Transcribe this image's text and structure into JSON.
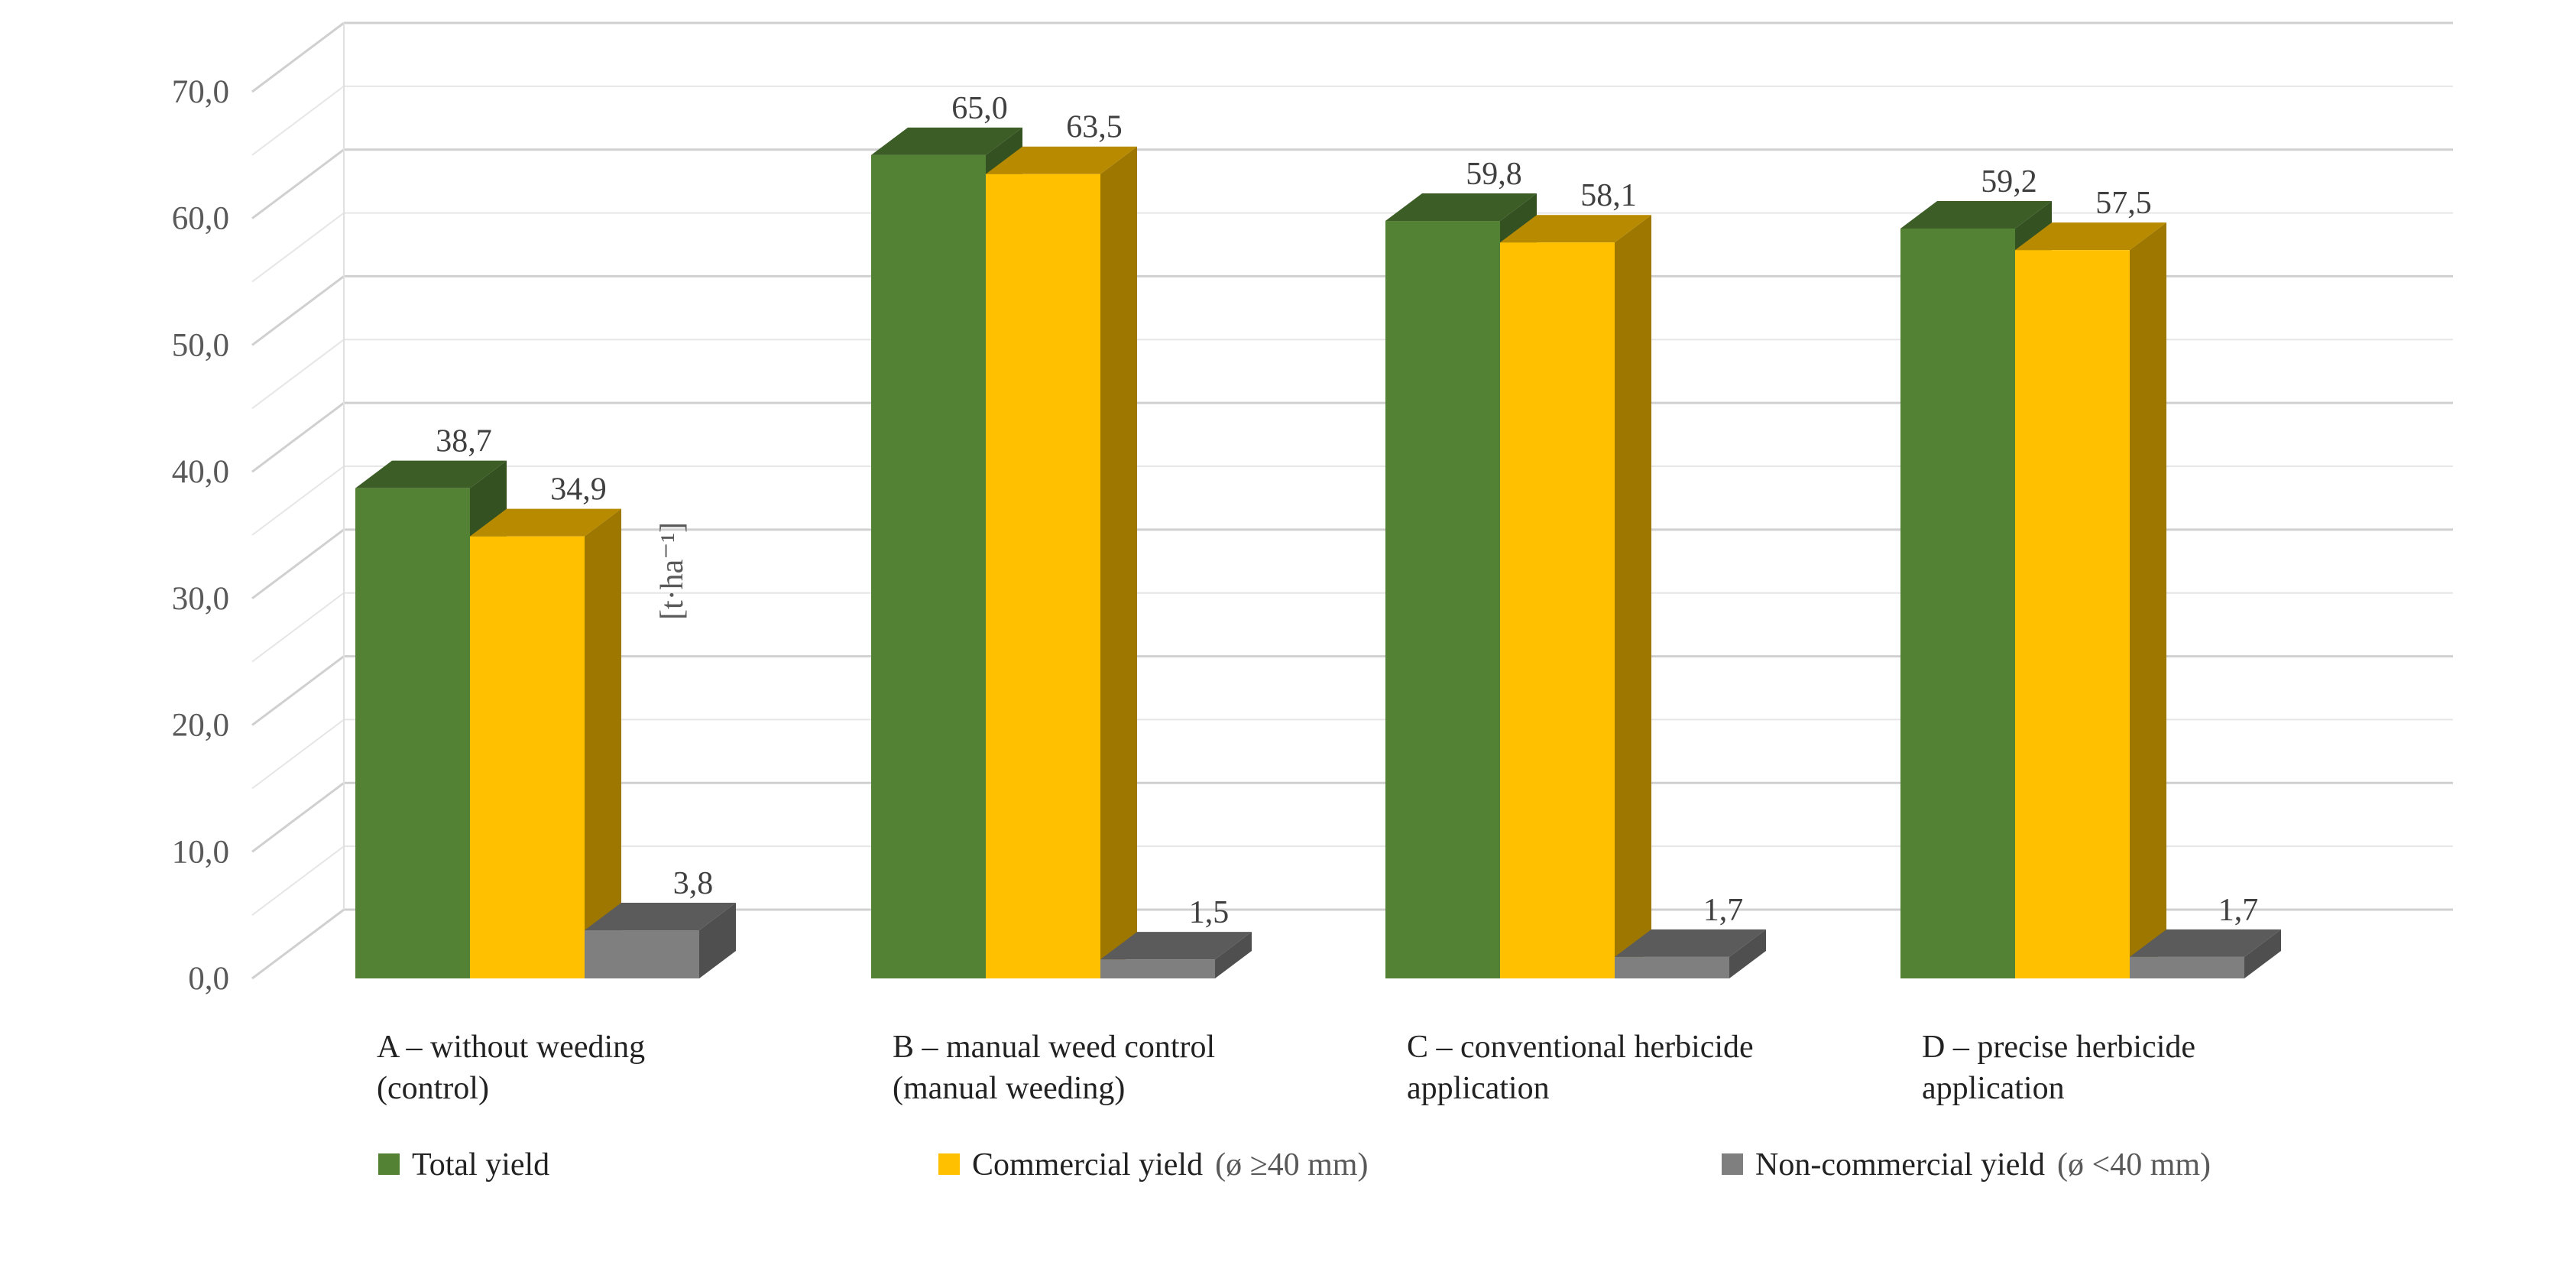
{
  "chart_data": {
    "type": "bar",
    "style": "3d-clustered-column",
    "title": "",
    "ylabel": "[t·ha⁻¹]",
    "xlabel": "",
    "ylim": [
      0,
      70
    ],
    "grid": true,
    "legend_position": "bottom",
    "y_ticks": [
      "0,0",
      "10,0",
      "20,0",
      "30,0",
      "40,0",
      "50,0",
      "60,0",
      "70,0"
    ],
    "categories": [
      [
        "A – without weeding",
        "(control)"
      ],
      [
        "B – manual weed control",
        "(manual weeding)"
      ],
      [
        "C – conventional herbicide",
        "application"
      ],
      [
        "D – precise herbicide",
        "application"
      ]
    ],
    "series": [
      {
        "name": "Total yield",
        "note": "",
        "color": "#548235",
        "values": [
          38.7,
          65.0,
          59.8,
          59.2
        ],
        "labels": [
          "38,7",
          "65,0",
          "59,8",
          "59,2"
        ]
      },
      {
        "name": "Commercial yield",
        "note": "(ø ≥40 mm)",
        "color": "#ffc000",
        "values": [
          34.9,
          63.5,
          58.1,
          57.5
        ],
        "labels": [
          "34,9",
          "63,5",
          "58,1",
          "57,5"
        ]
      },
      {
        "name": "Non-commercial yield",
        "note": "(ø <40 mm)",
        "color": "#7f7f7f",
        "values": [
          3.8,
          1.5,
          1.7,
          1.7
        ],
        "labels": [
          "3,8",
          "1,5",
          "1,7",
          "1,7"
        ]
      }
    ]
  }
}
